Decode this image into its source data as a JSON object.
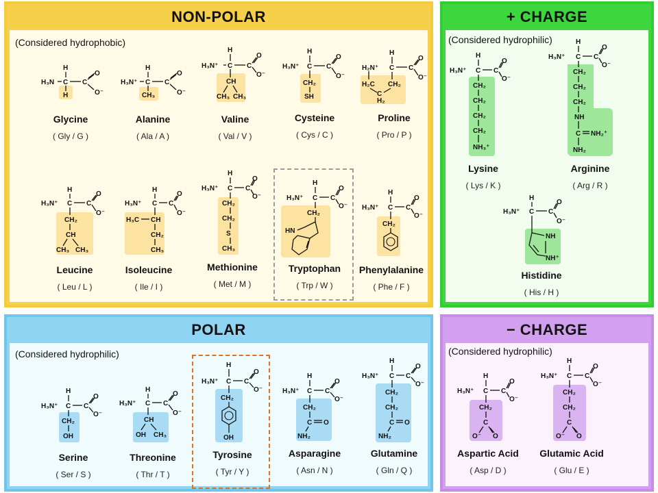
{
  "panels": {
    "nonpolar": {
      "title": "NON-POLAR",
      "note": "(Considered hydrophobic)",
      "border": "#f2cc3a",
      "header_bg": "#f6d04a",
      "inner_bg": "#fffbe6"
    },
    "positive": {
      "title": "+ CHARGE",
      "note": "(Considered hydrophilic)",
      "border": "#33cc33",
      "header_bg": "#3ed63e",
      "inner_bg": "#f2fdf0"
    },
    "polar": {
      "title": "POLAR",
      "note": "(Considered hydrophilic)",
      "border": "#6fc5ea",
      "header_bg": "#8fd4f2",
      "inner_bg": "#f0fbfe"
    },
    "negative": {
      "title": "− CHARGE",
      "note": "(Considered hydrophilic)",
      "border": "#c58ce8",
      "header_bg": "#d2a0ef",
      "inner_bg": "#fbf2fe"
    }
  },
  "colors": {
    "nonpolar_hl": "#fce3a2",
    "positive_hl": "#9ee79a",
    "polar_hl": "#a9dcf4",
    "negative_hl": "#d9b4f0"
  },
  "amino_acids": [
    {
      "name": "Glycine",
      "abbr": "( Gly / G )"
    },
    {
      "name": "Alanine",
      "abbr": "( Ala / A )"
    },
    {
      "name": "Valine",
      "abbr": "( Val / V )"
    },
    {
      "name": "Cysteine",
      "abbr": "( Cys / C )"
    },
    {
      "name": "Proline",
      "abbr": "( Pro / P )"
    },
    {
      "name": "Leucine",
      "abbr": "( Leu / L )"
    },
    {
      "name": "Isoleucine",
      "abbr": "( Ile / I )"
    },
    {
      "name": "Methionine",
      "abbr": "( Met / M )"
    },
    {
      "name": "Tryptophan",
      "abbr": "( Trp / W )"
    },
    {
      "name": "Phenylalanine",
      "abbr": "( Phe / F )"
    },
    {
      "name": "Lysine",
      "abbr": "( Lys / K )"
    },
    {
      "name": "Arginine",
      "abbr": "( Arg / R )"
    },
    {
      "name": "Histidine",
      "abbr": "( His / H )"
    },
    {
      "name": "Serine",
      "abbr": "( Ser / S )"
    },
    {
      "name": "Threonine",
      "abbr": "( Thr / T )"
    },
    {
      "name": "Tyrosine",
      "abbr": "( Tyr / Y )"
    },
    {
      "name": "Asparagine",
      "abbr": "( Asn / N )"
    },
    {
      "name": "Glutamine",
      "abbr": "( Gln / Q )"
    },
    {
      "name": "Aspartic Acid",
      "abbr": "( Asp / D )"
    },
    {
      "name": "Glutamic Acid",
      "abbr": "( Glu / E )"
    }
  ],
  "structures": {
    "glycine": [
      "H₃N",
      "H",
      "C",
      "C",
      "O",
      "O⁻",
      "H"
    ],
    "alanine": [
      "H₃N⁺",
      "H",
      "C",
      "C",
      "O",
      "O⁻",
      "CH₃"
    ],
    "valine": [
      "H₃N⁺",
      "H",
      "C",
      "C",
      "O",
      "O⁻",
      "CH",
      "CH₃",
      "CH₃"
    ],
    "cysteine": [
      "H₃N⁺",
      "H",
      "C",
      "C",
      "O",
      "O⁻",
      "CH₂",
      "SH"
    ],
    "proline": [
      "H₂N⁺",
      "H",
      "C",
      "C",
      "O",
      "O⁻",
      "H₂C",
      "CH₂",
      "C",
      "H₂"
    ],
    "leucine": [
      "H₃N⁺",
      "H",
      "C",
      "C",
      "O",
      "O⁻",
      "CH₂",
      "CH",
      "CH₃",
      "CH₃"
    ],
    "isoleucine": [
      "H₃N⁺",
      "H",
      "C",
      "C",
      "O",
      "O⁻",
      "H₃C",
      "CH",
      "CH₂",
      "CH₃"
    ],
    "methionine": [
      "H₃N⁺",
      "H",
      "C",
      "C",
      "O",
      "O⁻",
      "CH₂",
      "CH₂",
      "S",
      "CH₃"
    ],
    "tryptophan": [
      "H₃N⁺",
      "H",
      "C",
      "C",
      "O",
      "O⁻",
      "CH₂",
      "HN"
    ],
    "phenylalanine": [
      "H₃N⁺",
      "H",
      "C",
      "C",
      "O",
      "O⁻",
      "CH₂"
    ],
    "lysine": [
      "H₃N⁺",
      "H",
      "C",
      "C",
      "O",
      "O⁻",
      "CH₂",
      "CH₂",
      "CH₂",
      "CH₂",
      "NH₃⁺"
    ],
    "arginine": [
      "H₃N⁺",
      "H",
      "C",
      "C",
      "O",
      "O⁻",
      "CH₂",
      "CH₂",
      "CH₂",
      "NH",
      "C",
      "NH₂⁺",
      "NH₂"
    ],
    "histidine": [
      "H₃N⁺",
      "H",
      "C",
      "C",
      "O",
      "O⁻",
      "NH",
      "NH⁺"
    ],
    "serine": [
      "H₃N⁺",
      "H",
      "C",
      "C",
      "O",
      "O⁻",
      "CH₂",
      "OH"
    ],
    "threonine": [
      "H₃N⁺",
      "H",
      "C",
      "C",
      "O",
      "O⁻",
      "CH",
      "OH",
      "CH₃"
    ],
    "tyrosine": [
      "H₃N⁺",
      "H",
      "C",
      "C",
      "O",
      "O⁻",
      "CH₂",
      "OH"
    ],
    "asparagine": [
      "H₃N⁺",
      "H",
      "C",
      "C",
      "O",
      "O⁻",
      "CH₂",
      "C",
      "O",
      "NH₂"
    ],
    "glutamine": [
      "H₃N⁺",
      "H",
      "C",
      "C",
      "O",
      "O⁻",
      "CH₂",
      "CH₂",
      "C",
      "O",
      "NH₂"
    ],
    "aspartic_acid": [
      "H₃N⁺",
      "H",
      "C",
      "C",
      "O",
      "O⁻",
      "CH₂",
      "C",
      "O⁻",
      "O"
    ],
    "glutamic_acid": [
      "H₃N⁺",
      "H",
      "C",
      "C",
      "O",
      "O⁻",
      "CH₂",
      "CH₂",
      "C",
      "O⁻",
      "O"
    ]
  }
}
